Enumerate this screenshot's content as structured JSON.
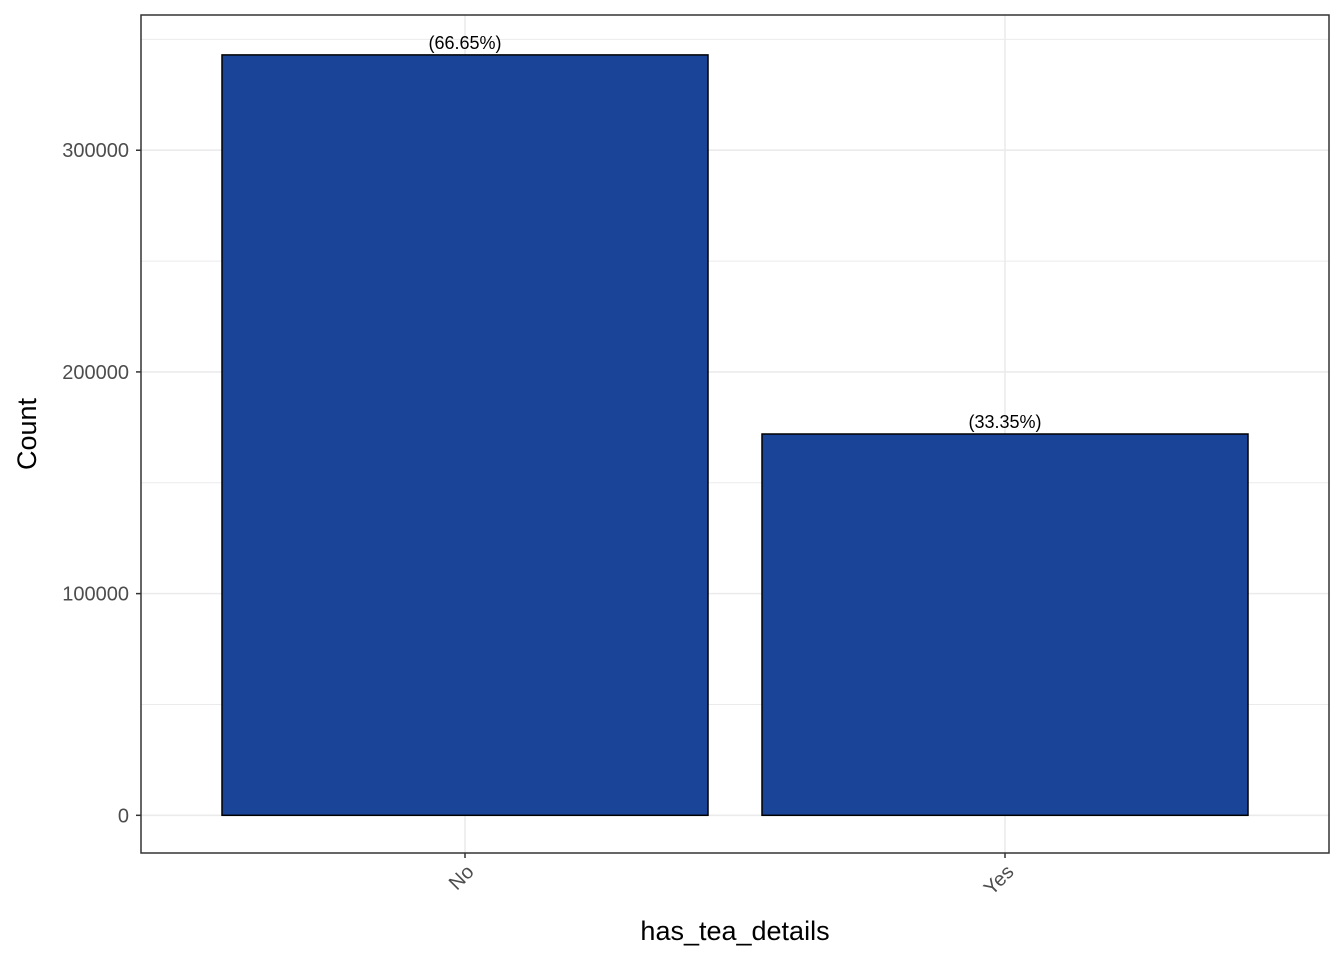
{
  "chart_data": {
    "type": "bar",
    "categories": [
      "No",
      "Yes"
    ],
    "values": [
      343000,
      172000
    ],
    "data_labels": [
      "(66.65%)",
      "(33.35%)"
    ],
    "title": "",
    "xlabel": "has_tea_details",
    "ylabel": "Count",
    "ylim": [
      -17000,
      361000
    ],
    "yticks": [
      0,
      100000,
      200000,
      300000
    ],
    "ytick_labels": [
      "0",
      "100000",
      "200000",
      "300000"
    ],
    "grid": true,
    "legend": "none",
    "bar_color": "#1A4498",
    "bar_edge_color": "#000000",
    "grid_color": "#ebebeb"
  }
}
